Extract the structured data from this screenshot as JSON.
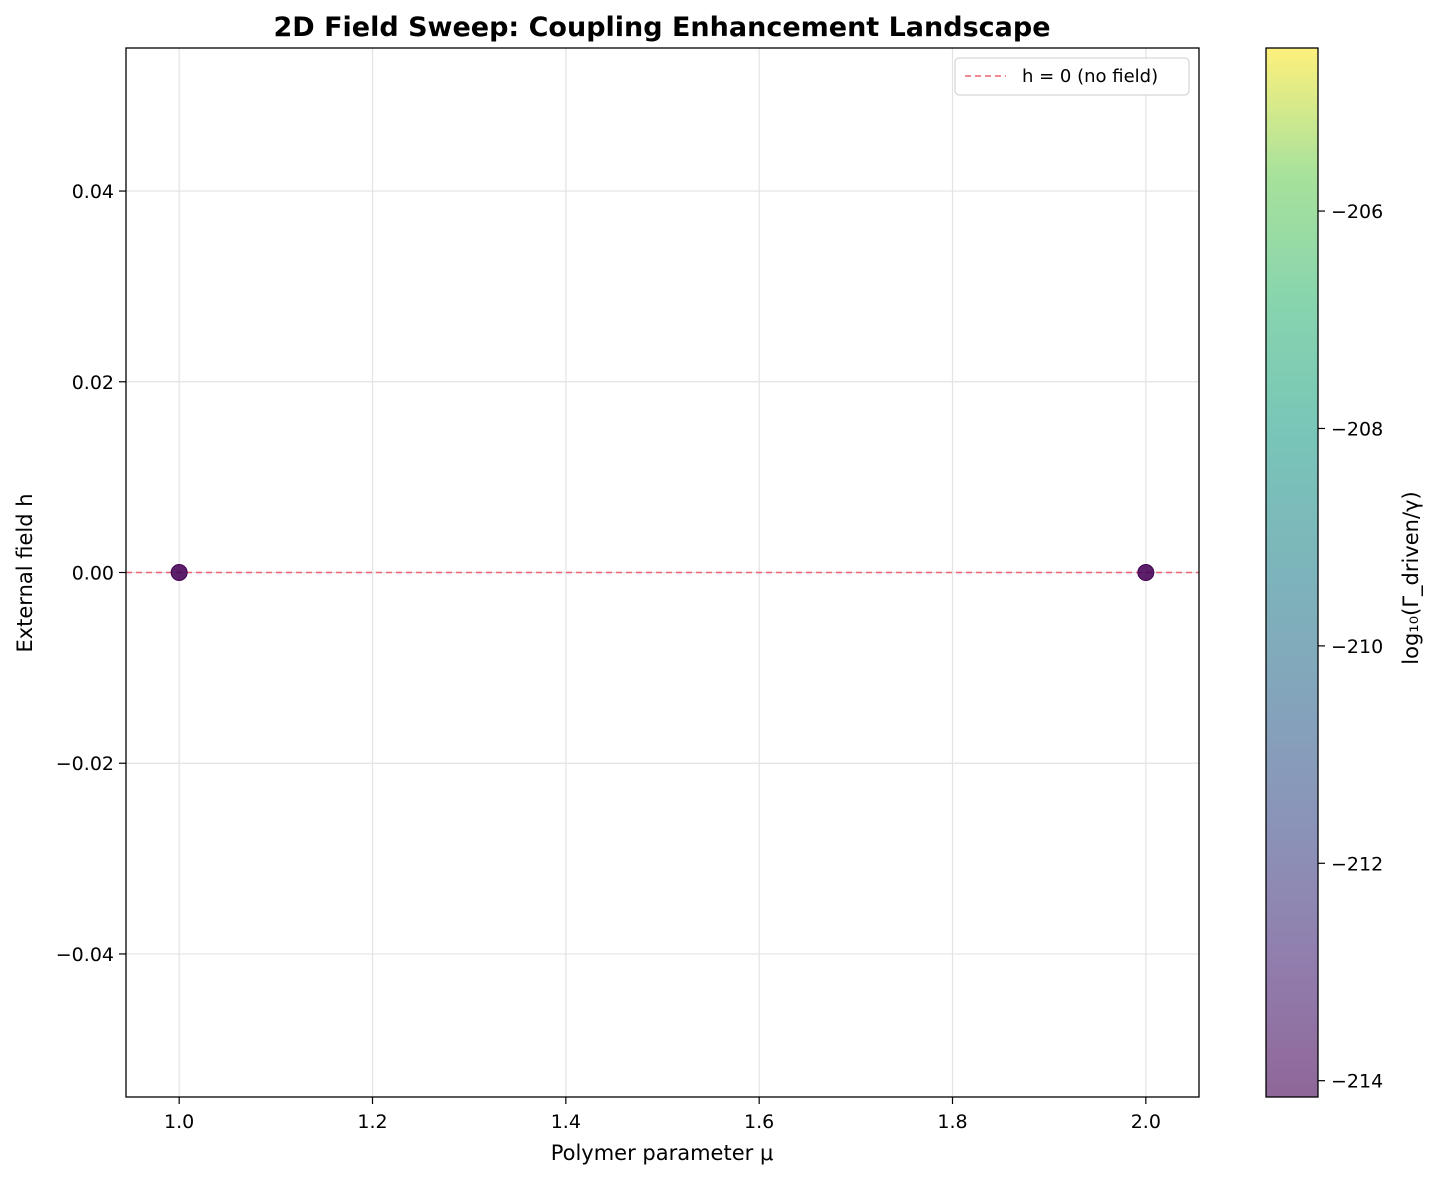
{
  "chart_data": {
    "type": "scatter",
    "title": "2D Field Sweep: Coupling Enhancement Landscape",
    "xlabel": "Polymer parameter μ",
    "ylabel": "External field h",
    "xlim": [
      0.945,
      2.055
    ],
    "ylim": [
      -0.055,
      0.055
    ],
    "xticks": [
      1.0,
      1.2,
      1.4,
      1.6,
      1.8,
      2.0
    ],
    "xtick_labels": [
      "1.0",
      "1.2",
      "1.4",
      "1.6",
      "1.8",
      "2.0"
    ],
    "yticks": [
      0.04,
      0.02,
      0.0,
      -0.02,
      -0.04
    ],
    "ytick_labels": [
      "0.04",
      "0.02",
      "0.00",
      "−0.02",
      "−0.04"
    ],
    "grid": true,
    "points": [
      {
        "x": 1.0,
        "y": 0.0,
        "c": -214.1
      },
      {
        "x": 2.0,
        "y": 0.0,
        "c": -214.1
      }
    ],
    "reference_line": {
      "y": 0.0,
      "label": "h = 0 (no field)",
      "color": "#e8656f",
      "style": "dashed"
    },
    "legend": {
      "position": "top-right",
      "entries": [
        "h = 0 (no field)"
      ]
    },
    "colorbar": {
      "label": "log₁₀(Γ_driven/γ)",
      "colormap": "viridis",
      "range": [
        -214.15,
        -204.5
      ],
      "ticks": [
        -206,
        -208,
        -210,
        -212,
        -214
      ],
      "tick_labels": [
        "−206",
        "−208",
        "−210",
        "−212",
        "−214"
      ]
    }
  }
}
